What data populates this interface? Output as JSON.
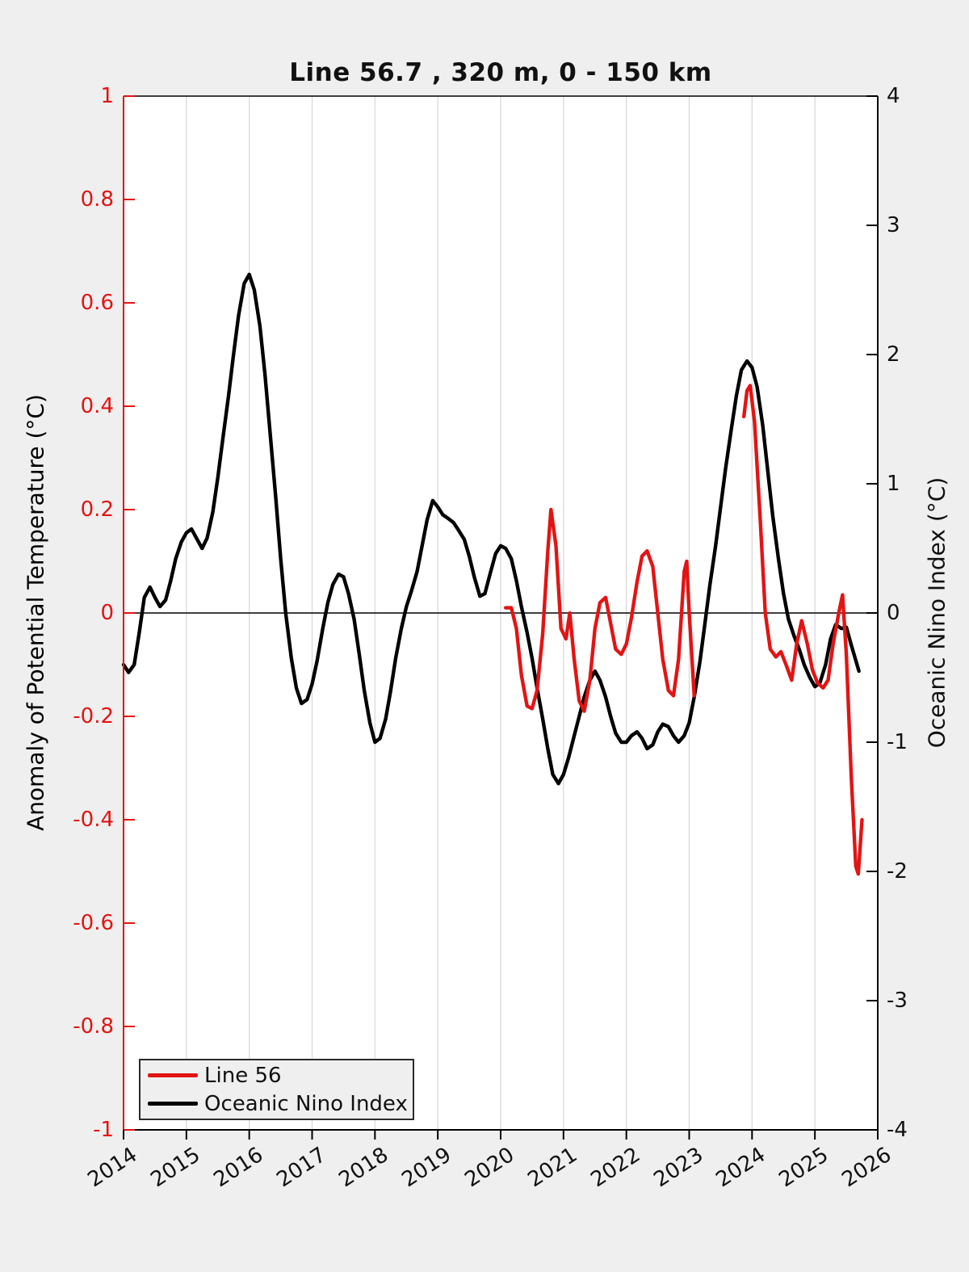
{
  "title": "Line 56.7 , 320 m, 0 - 150 km",
  "colors": {
    "red_accent": "#e31414",
    "black_line": "#000000",
    "figure_bg": "#efefef",
    "plot_bg": "#ffffff",
    "gridline": "#d9d9d9"
  },
  "left_axis": {
    "label": "Anomaly of Potential Temperature (°C)",
    "min": -1,
    "max": 1,
    "tick_labels": [
      "1",
      "0.8",
      "0.6",
      "0.4",
      "0.2",
      "0",
      "-0.2",
      "-0.4",
      "-0.6",
      "-0.8",
      "-1"
    ],
    "tick_values": [
      1,
      0.8,
      0.6,
      0.4,
      0.2,
      0,
      -0.2,
      -0.4,
      -0.6,
      -0.8,
      -1
    ]
  },
  "right_axis": {
    "label": "Oceanic Nino Index (°C)",
    "min": -4,
    "max": 4,
    "tick_labels": [
      "4",
      "3",
      "2",
      "1",
      "0",
      "-1",
      "-2",
      "-3",
      "-4"
    ],
    "tick_values": [
      4,
      3,
      2,
      1,
      0,
      -1,
      -2,
      -3,
      -4
    ]
  },
  "x_axis": {
    "min": 2014,
    "max": 2026,
    "tick_labels": [
      "2014",
      "2015",
      "2016",
      "2017",
      "2018",
      "2019",
      "2020",
      "2021",
      "2022",
      "2023",
      "2024",
      "2025",
      "2026"
    ],
    "tick_values": [
      2014,
      2015,
      2016,
      2017,
      2018,
      2019,
      2020,
      2021,
      2022,
      2023,
      2024,
      2025,
      2026
    ]
  },
  "legend": {
    "items": [
      {
        "label": "Line 56",
        "color": "#e31414"
      },
      {
        "label": "Oceanic Nino Index",
        "color": "#000000"
      }
    ]
  },
  "chart_data": {
    "type": "line",
    "title": "Line 56.7 , 320 m, 0 - 150 km",
    "xlabel": "",
    "x_range": [
      2014,
      2026
    ],
    "grid": "vertical-only",
    "zero_line": true,
    "legend_position": "bottom-left",
    "series": [
      {
        "name": "Oceanic Nino Index",
        "axis": "right",
        "color": "#000000",
        "ylabel": "Oceanic Nino Index (°C)",
        "ylim": [
          -4,
          4
        ],
        "segments": [
          [
            [
              2014.0,
              -0.4
            ],
            [
              2014.08,
              -0.46
            ],
            [
              2014.17,
              -0.4
            ],
            [
              2014.25,
              -0.15
            ],
            [
              2014.33,
              0.12
            ],
            [
              2014.42,
              0.2
            ],
            [
              2014.5,
              0.12
            ],
            [
              2014.58,
              0.05
            ],
            [
              2014.67,
              0.1
            ],
            [
              2014.75,
              0.25
            ],
            [
              2014.83,
              0.42
            ],
            [
              2014.92,
              0.55
            ],
            [
              2015.0,
              0.62
            ],
            [
              2015.08,
              0.65
            ],
            [
              2015.17,
              0.57
            ],
            [
              2015.25,
              0.5
            ],
            [
              2015.33,
              0.58
            ],
            [
              2015.42,
              0.78
            ],
            [
              2015.5,
              1.05
            ],
            [
              2015.58,
              1.35
            ],
            [
              2015.67,
              1.68
            ],
            [
              2015.75,
              2.0
            ],
            [
              2015.83,
              2.3
            ],
            [
              2015.92,
              2.55
            ],
            [
              2016.0,
              2.62
            ],
            [
              2016.08,
              2.5
            ],
            [
              2016.17,
              2.22
            ],
            [
              2016.25,
              1.85
            ],
            [
              2016.33,
              1.4
            ],
            [
              2016.42,
              0.9
            ],
            [
              2016.5,
              0.42
            ],
            [
              2016.58,
              0.0
            ],
            [
              2016.67,
              -0.35
            ],
            [
              2016.75,
              -0.58
            ],
            [
              2016.83,
              -0.7
            ],
            [
              2016.92,
              -0.67
            ],
            [
              2017.0,
              -0.55
            ],
            [
              2017.08,
              -0.37
            ],
            [
              2017.17,
              -0.12
            ],
            [
              2017.25,
              0.08
            ],
            [
              2017.33,
              0.22
            ],
            [
              2017.42,
              0.3
            ],
            [
              2017.5,
              0.28
            ],
            [
              2017.58,
              0.15
            ],
            [
              2017.67,
              -0.05
            ],
            [
              2017.75,
              -0.32
            ],
            [
              2017.83,
              -0.6
            ],
            [
              2017.92,
              -0.85
            ],
            [
              2018.0,
              -1.0
            ],
            [
              2018.08,
              -0.97
            ],
            [
              2018.17,
              -0.82
            ],
            [
              2018.25,
              -0.6
            ],
            [
              2018.33,
              -0.35
            ],
            [
              2018.42,
              -0.12
            ],
            [
              2018.5,
              0.05
            ],
            [
              2018.58,
              0.17
            ],
            [
              2018.67,
              0.32
            ],
            [
              2018.75,
              0.52
            ],
            [
              2018.83,
              0.72
            ],
            [
              2018.92,
              0.87
            ],
            [
              2019.0,
              0.82
            ],
            [
              2019.08,
              0.76
            ],
            [
              2019.17,
              0.73
            ],
            [
              2019.25,
              0.7
            ],
            [
              2019.33,
              0.64
            ],
            [
              2019.42,
              0.57
            ],
            [
              2019.5,
              0.44
            ],
            [
              2019.58,
              0.28
            ],
            [
              2019.67,
              0.13
            ],
            [
              2019.75,
              0.15
            ],
            [
              2019.83,
              0.3
            ],
            [
              2019.92,
              0.46
            ],
            [
              2020.0,
              0.52
            ],
            [
              2020.08,
              0.5
            ],
            [
              2020.17,
              0.42
            ],
            [
              2020.25,
              0.25
            ],
            [
              2020.33,
              0.05
            ],
            [
              2020.42,
              -0.15
            ],
            [
              2020.5,
              -0.35
            ],
            [
              2020.58,
              -0.58
            ],
            [
              2020.67,
              -0.82
            ],
            [
              2020.75,
              -1.05
            ],
            [
              2020.83,
              -1.25
            ],
            [
              2020.92,
              -1.32
            ],
            [
              2021.0,
              -1.25
            ],
            [
              2021.08,
              -1.12
            ],
            [
              2021.17,
              -0.95
            ],
            [
              2021.25,
              -0.8
            ],
            [
              2021.33,
              -0.65
            ],
            [
              2021.42,
              -0.52
            ],
            [
              2021.5,
              -0.45
            ],
            [
              2021.58,
              -0.52
            ],
            [
              2021.67,
              -0.65
            ],
            [
              2021.75,
              -0.8
            ],
            [
              2021.83,
              -0.93
            ],
            [
              2021.92,
              -1.0
            ],
            [
              2022.0,
              -1.0
            ],
            [
              2022.08,
              -0.95
            ],
            [
              2022.17,
              -0.92
            ],
            [
              2022.25,
              -0.97
            ],
            [
              2022.33,
              -1.05
            ],
            [
              2022.42,
              -1.02
            ],
            [
              2022.5,
              -0.92
            ],
            [
              2022.58,
              -0.86
            ],
            [
              2022.67,
              -0.88
            ],
            [
              2022.75,
              -0.95
            ],
            [
              2022.83,
              -1.0
            ],
            [
              2022.92,
              -0.95
            ],
            [
              2023.0,
              -0.85
            ],
            [
              2023.08,
              -0.65
            ],
            [
              2023.17,
              -0.38
            ],
            [
              2023.25,
              -0.08
            ],
            [
              2023.33,
              0.22
            ],
            [
              2023.42,
              0.52
            ],
            [
              2023.5,
              0.82
            ],
            [
              2023.58,
              1.12
            ],
            [
              2023.67,
              1.42
            ],
            [
              2023.75,
              1.68
            ],
            [
              2023.83,
              1.88
            ],
            [
              2023.92,
              1.95
            ],
            [
              2024.0,
              1.9
            ],
            [
              2024.08,
              1.75
            ],
            [
              2024.17,
              1.45
            ],
            [
              2024.25,
              1.1
            ],
            [
              2024.33,
              0.75
            ],
            [
              2024.42,
              0.42
            ],
            [
              2024.5,
              0.15
            ],
            [
              2024.58,
              -0.05
            ],
            [
              2024.67,
              -0.18
            ],
            [
              2024.75,
              -0.28
            ],
            [
              2024.83,
              -0.4
            ],
            [
              2024.92,
              -0.5
            ],
            [
              2025.0,
              -0.57
            ],
            [
              2025.08,
              -0.54
            ],
            [
              2025.17,
              -0.4
            ],
            [
              2025.25,
              -0.2
            ],
            [
              2025.33,
              -0.09
            ],
            [
              2025.42,
              -0.12
            ],
            [
              2025.5,
              -0.11
            ],
            [
              2025.58,
              -0.25
            ],
            [
              2025.7,
              -0.45
            ]
          ]
        ]
      },
      {
        "name": "Line 56",
        "axis": "left",
        "color": "#e31414",
        "ylabel": "Anomaly of Potential Temperature (°C)",
        "ylim": [
          -1,
          1
        ],
        "segments": [
          [
            [
              2020.08,
              0.01
            ],
            [
              2020.17,
              0.01
            ],
            [
              2020.25,
              -0.03
            ],
            [
              2020.33,
              -0.12
            ],
            [
              2020.42,
              -0.18
            ],
            [
              2020.5,
              -0.185
            ],
            [
              2020.58,
              -0.15
            ],
            [
              2020.67,
              -0.04
            ],
            [
              2020.75,
              0.12
            ],
            [
              2020.8,
              0.2
            ],
            [
              2020.88,
              0.13
            ],
            [
              2020.96,
              -0.03
            ],
            [
              2021.04,
              -0.05
            ],
            [
              2021.1,
              0.0
            ],
            [
              2021.17,
              -0.09
            ],
            [
              2021.25,
              -0.17
            ],
            [
              2021.33,
              -0.19
            ],
            [
              2021.42,
              -0.13
            ],
            [
              2021.5,
              -0.03
            ],
            [
              2021.58,
              0.02
            ],
            [
              2021.67,
              0.03
            ],
            [
              2021.75,
              -0.02
            ],
            [
              2021.83,
              -0.07
            ],
            [
              2021.92,
              -0.08
            ],
            [
              2022.0,
              -0.06
            ],
            [
              2022.08,
              -0.01
            ],
            [
              2022.17,
              0.06
            ],
            [
              2022.25,
              0.11
            ],
            [
              2022.33,
              0.12
            ],
            [
              2022.42,
              0.09
            ],
            [
              2022.5,
              0.0
            ],
            [
              2022.58,
              -0.09
            ],
            [
              2022.67,
              -0.15
            ],
            [
              2022.75,
              -0.16
            ],
            [
              2022.83,
              -0.09
            ],
            [
              2022.92,
              0.08
            ],
            [
              2022.96,
              0.1
            ],
            [
              2023.0,
              0.0
            ],
            [
              2023.08,
              -0.16
            ]
          ],
          [
            [
              2023.87,
              0.38
            ],
            [
              2023.92,
              0.43
            ],
            [
              2023.97,
              0.44
            ],
            [
              2024.04,
              0.37
            ],
            [
              2024.13,
              0.18
            ],
            [
              2024.21,
              0.0
            ],
            [
              2024.29,
              -0.07
            ],
            [
              2024.38,
              -0.085
            ],
            [
              2024.46,
              -0.075
            ],
            [
              2024.54,
              -0.1
            ],
            [
              2024.63,
              -0.13
            ],
            [
              2024.71,
              -0.06
            ],
            [
              2024.79,
              -0.015
            ],
            [
              2024.88,
              -0.06
            ],
            [
              2024.96,
              -0.11
            ],
            [
              2025.04,
              -0.135
            ],
            [
              2025.13,
              -0.145
            ],
            [
              2025.21,
              -0.13
            ],
            [
              2025.29,
              -0.06
            ],
            [
              2025.38,
              0.0
            ],
            [
              2025.44,
              0.035
            ],
            [
              2025.5,
              -0.08
            ],
            [
              2025.58,
              -0.32
            ],
            [
              2025.65,
              -0.49
            ],
            [
              2025.69,
              -0.505
            ],
            [
              2025.75,
              -0.4
            ]
          ]
        ]
      }
    ]
  }
}
